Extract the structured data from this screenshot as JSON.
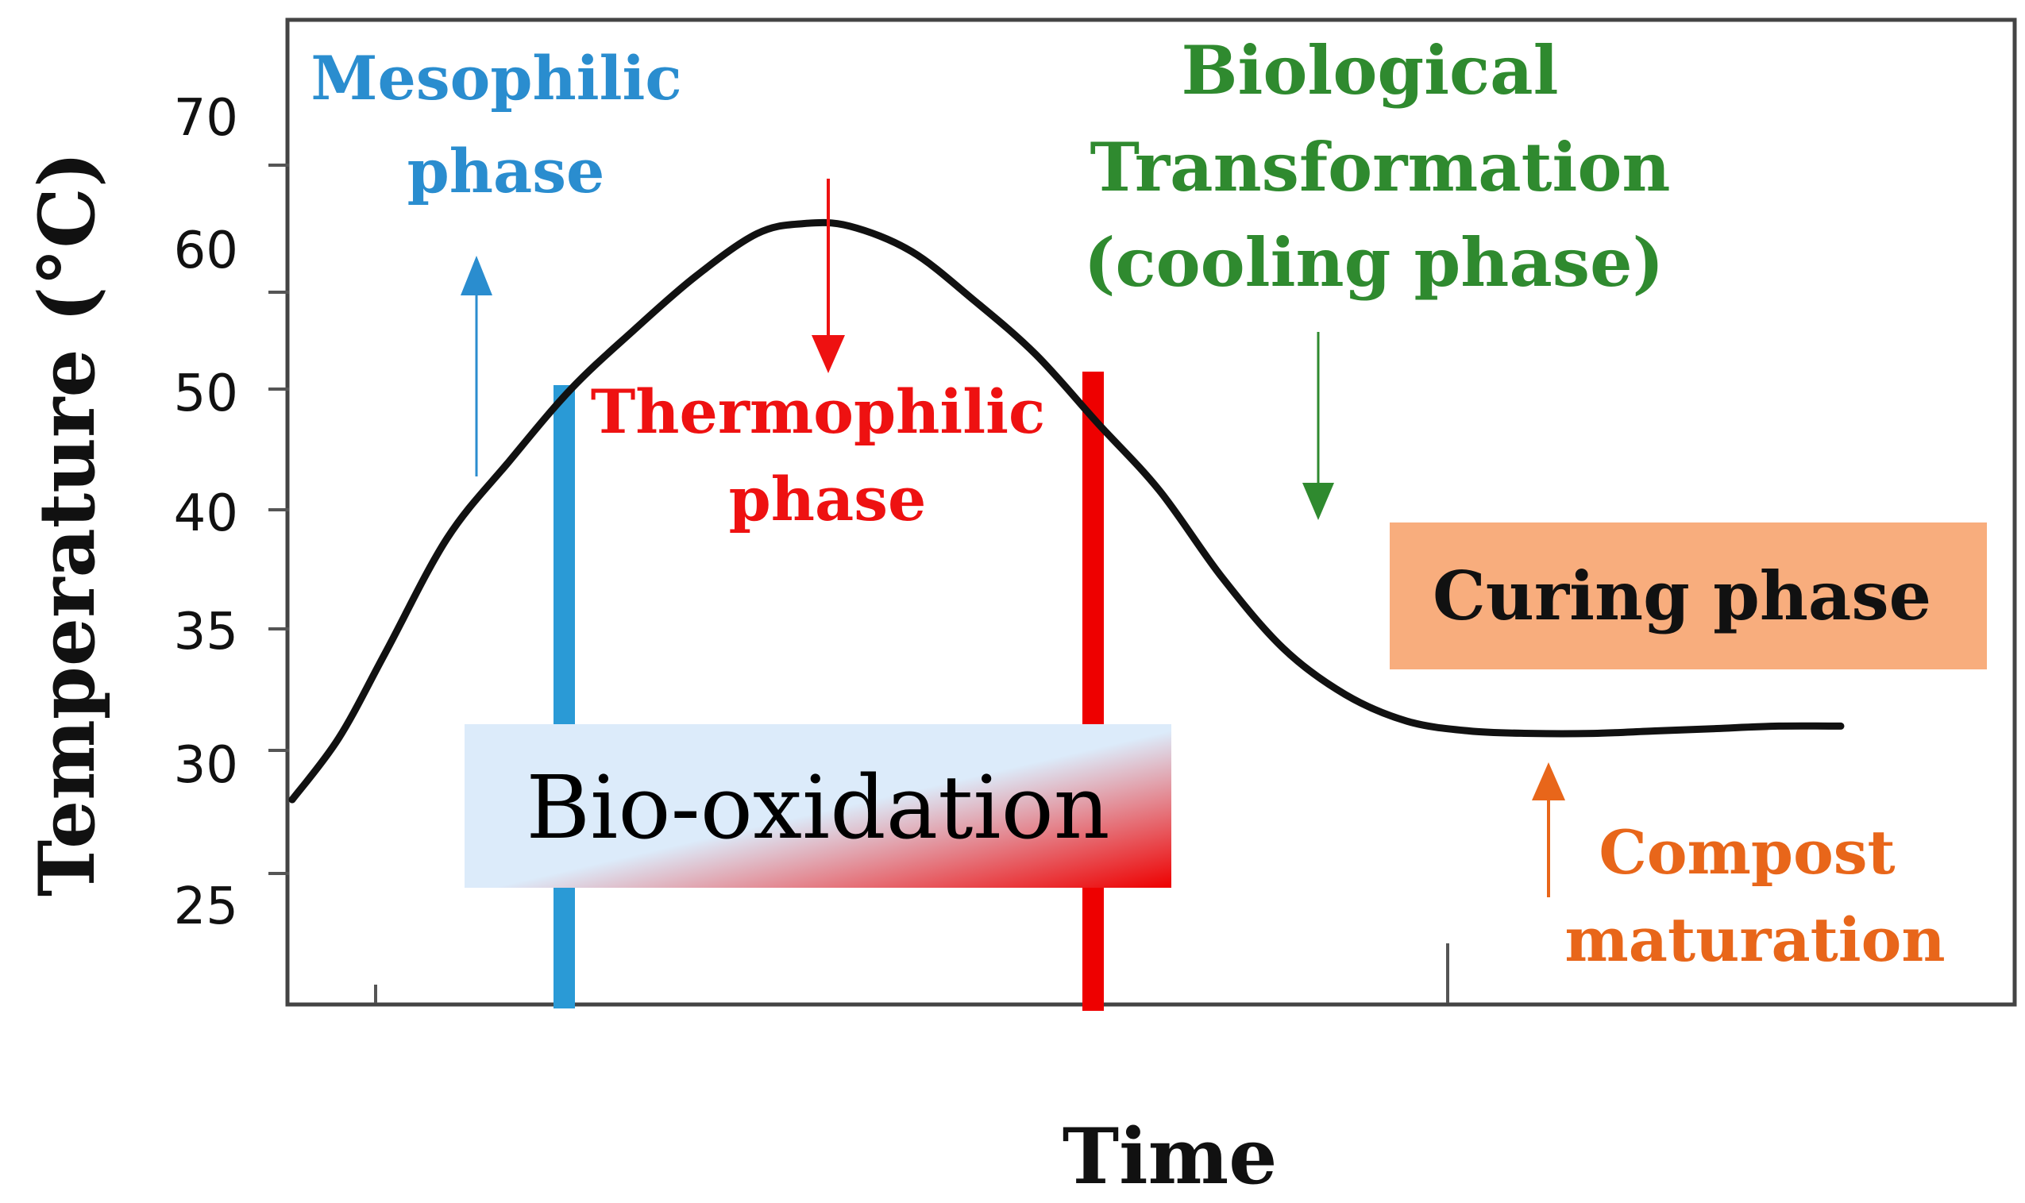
{
  "chart_data": {
    "type": "line",
    "xlabel": "Time",
    "ylabel": "Temperature (°C)",
    "yticks": [
      "70",
      "60",
      "50",
      "40",
      "35",
      "30",
      "25"
    ],
    "xlim": [
      0,
      100
    ],
    "grid": false,
    "legend": "none",
    "series": [
      {
        "color": "#111111",
        "x": [
          0,
          3,
          6,
          10,
          14,
          18,
          22,
          26,
          30,
          33,
          36,
          40,
          44,
          48,
          52,
          56,
          60,
          64,
          68,
          72,
          76,
          80,
          84,
          88,
          92,
          96,
          100
        ],
        "y": [
          28,
          30.5,
          34,
          38.8,
          44,
          50,
          56,
          61.2,
          64.6,
          65.4,
          65.2,
          63.2,
          59.2,
          53.6,
          47.2,
          41.6,
          37.2,
          34.2,
          32.3,
          31.2,
          30.8,
          30.7,
          30.7,
          30.8,
          30.9,
          31.0,
          31.0
        ]
      }
    ],
    "annotations": {
      "mesophilic": {
        "text": [
          "Mesophilic",
          "phase"
        ],
        "color": "#2a8dcf"
      },
      "thermophilic": {
        "text": [
          "Thermophilic",
          "phase"
        ],
        "color": "#ee1111"
      },
      "biological": {
        "text": [
          "Biological",
          "Transformation",
          "(cooling phase)"
        ],
        "color": "#2f8a2f"
      },
      "curing": {
        "text": "Curing phase",
        "color": "#f8ad7d"
      },
      "compost": {
        "text": [
          "Compost",
          "maturation"
        ],
        "color": "#e8661a"
      },
      "bio_oxidation": {
        "text": "Bio-oxidation",
        "color_start": "#dcebfa",
        "color_end": "#ee0000"
      }
    },
    "markers": {
      "blue_bar_color": "#2a9ad6",
      "red_bar_color": "#ee0000"
    }
  }
}
